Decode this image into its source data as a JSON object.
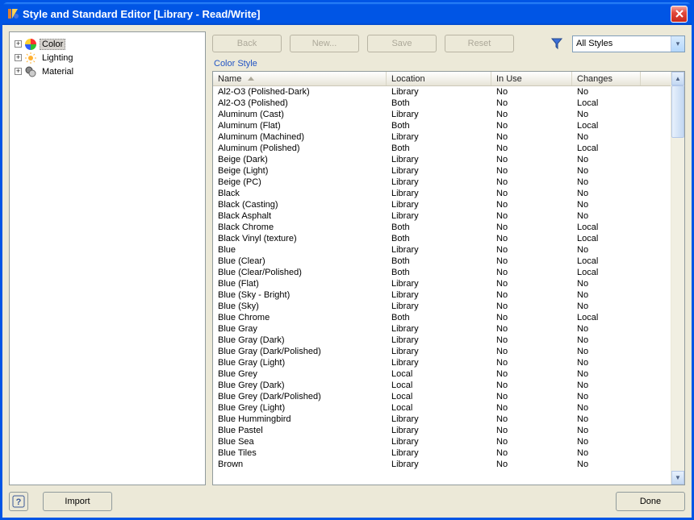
{
  "window": {
    "title": "Style and Standard Editor [Library - Read/Write]"
  },
  "tree": {
    "items": [
      {
        "label": "Color",
        "selected": true,
        "iconColors": [
          "#FF3030",
          "#30C030",
          "#3060FF",
          "#FFD030"
        ]
      },
      {
        "label": "Lighting",
        "selected": false
      },
      {
        "label": "Material",
        "selected": false
      }
    ]
  },
  "toolbar": {
    "back": "Back",
    "new": "New...",
    "save": "Save",
    "reset": "Reset",
    "filter_label": "All Styles"
  },
  "section_label": "Color Style",
  "table": {
    "columns": {
      "name": "Name",
      "location": "Location",
      "inuse": "In Use",
      "changes": "Changes"
    },
    "rows": [
      {
        "name": "Al2-O3 (Polished-Dark)",
        "location": "Library",
        "inuse": "No",
        "changes": "No"
      },
      {
        "name": "Al2-O3 (Polished)",
        "location": "Both",
        "inuse": "No",
        "changes": "Local"
      },
      {
        "name": "Aluminum (Cast)",
        "location": "Library",
        "inuse": "No",
        "changes": "No"
      },
      {
        "name": "Aluminum (Flat)",
        "location": "Both",
        "inuse": "No",
        "changes": "Local"
      },
      {
        "name": "Aluminum (Machined)",
        "location": "Library",
        "inuse": "No",
        "changes": "No"
      },
      {
        "name": "Aluminum (Polished)",
        "location": "Both",
        "inuse": "No",
        "changes": "Local"
      },
      {
        "name": "Beige (Dark)",
        "location": "Library",
        "inuse": "No",
        "changes": "No"
      },
      {
        "name": "Beige (Light)",
        "location": "Library",
        "inuse": "No",
        "changes": "No"
      },
      {
        "name": "Beige (PC)",
        "location": "Library",
        "inuse": "No",
        "changes": "No"
      },
      {
        "name": "Black",
        "location": "Library",
        "inuse": "No",
        "changes": "No"
      },
      {
        "name": "Black (Casting)",
        "location": "Library",
        "inuse": "No",
        "changes": "No"
      },
      {
        "name": "Black Asphalt",
        "location": "Library",
        "inuse": "No",
        "changes": "No"
      },
      {
        "name": "Black Chrome",
        "location": "Both",
        "inuse": "No",
        "changes": "Local"
      },
      {
        "name": "Black Vinyl (texture)",
        "location": "Both",
        "inuse": "No",
        "changes": "Local"
      },
      {
        "name": "Blue",
        "location": "Library",
        "inuse": "No",
        "changes": "No"
      },
      {
        "name": "Blue (Clear)",
        "location": "Both",
        "inuse": "No",
        "changes": "Local"
      },
      {
        "name": "Blue (Clear/Polished)",
        "location": "Both",
        "inuse": "No",
        "changes": "Local"
      },
      {
        "name": "Blue (Flat)",
        "location": "Library",
        "inuse": "No",
        "changes": "No"
      },
      {
        "name": "Blue (Sky - Bright)",
        "location": "Library",
        "inuse": "No",
        "changes": "No"
      },
      {
        "name": "Blue (Sky)",
        "location": "Library",
        "inuse": "No",
        "changes": "No"
      },
      {
        "name": "Blue Chrome",
        "location": "Both",
        "inuse": "No",
        "changes": "Local"
      },
      {
        "name": "Blue Gray",
        "location": "Library",
        "inuse": "No",
        "changes": "No"
      },
      {
        "name": "Blue Gray (Dark)",
        "location": "Library",
        "inuse": "No",
        "changes": "No"
      },
      {
        "name": "Blue Gray (Dark/Polished)",
        "location": "Library",
        "inuse": "No",
        "changes": "No"
      },
      {
        "name": "Blue Gray (Light)",
        "location": "Library",
        "inuse": "No",
        "changes": "No"
      },
      {
        "name": "Blue Grey",
        "location": "Local",
        "inuse": "No",
        "changes": "No"
      },
      {
        "name": "Blue Grey (Dark)",
        "location": "Local",
        "inuse": "No",
        "changes": "No"
      },
      {
        "name": "Blue Grey (Dark/Polished)",
        "location": "Local",
        "inuse": "No",
        "changes": "No"
      },
      {
        "name": "Blue Grey (Light)",
        "location": "Local",
        "inuse": "No",
        "changes": "No"
      },
      {
        "name": "Blue Hummingbird",
        "location": "Library",
        "inuse": "No",
        "changes": "No"
      },
      {
        "name": "Blue Pastel",
        "location": "Library",
        "inuse": "No",
        "changes": "No"
      },
      {
        "name": "Blue Sea",
        "location": "Library",
        "inuse": "No",
        "changes": "No"
      },
      {
        "name": "Blue Tiles",
        "location": "Library",
        "inuse": "No",
        "changes": "No"
      },
      {
        "name": "Brown",
        "location": "Library",
        "inuse": "No",
        "changes": "No"
      }
    ]
  },
  "bottom": {
    "help": "?",
    "import": "Import",
    "done": "Done"
  }
}
